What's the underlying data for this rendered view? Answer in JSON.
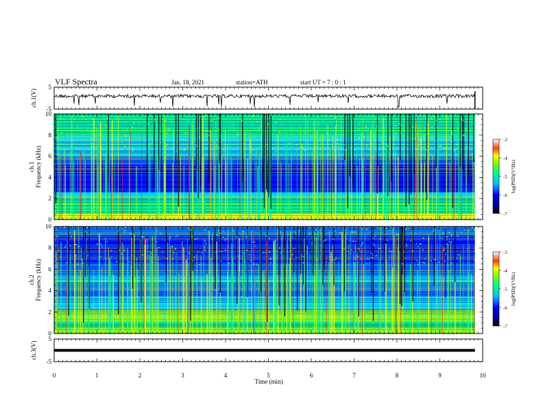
{
  "header": {
    "title": "VLF Spectra",
    "date": "Jan. 18, 2021",
    "station": "station=ATH",
    "start_ut": "start UT =  7 : 0 : 1"
  },
  "chart_data": [
    {
      "type": "line",
      "name": "ch1-waveform",
      "ylabel": "ch.1(V)",
      "ylim": [
        -5,
        5
      ],
      "yticks": [
        "5",
        "-5"
      ],
      "xlim": [
        0,
        10
      ]
    },
    {
      "type": "heatmap",
      "name": "ch1-spectrogram",
      "ylabel": "ch.1\nFrequency (kHz)",
      "ylim": [
        0,
        10
      ],
      "yticks": [
        "0",
        "2",
        "4",
        "6",
        "8",
        "10"
      ],
      "xlim": [
        0,
        10
      ],
      "colorbar": {
        "label": "log(PSD)(V²/Hz)",
        "range": [
          -7,
          -3
        ],
        "ticks": [
          "-3",
          "-4",
          "-5",
          "-6",
          "-7"
        ]
      }
    },
    {
      "type": "heatmap",
      "name": "ch2-spectrogram",
      "ylabel": "ch.2\nFrequency (kHz)",
      "ylim": [
        0,
        10
      ],
      "yticks": [
        "0",
        "2",
        "4",
        "6",
        "8",
        "10"
      ],
      "xlim": [
        0,
        10
      ],
      "colorbar": {
        "label": "log(PSD)(V²/Hz)",
        "range": [
          -7,
          -3
        ],
        "ticks": [
          "-3",
          "-4",
          "-5",
          "-6",
          "-7"
        ]
      }
    },
    {
      "type": "line",
      "name": "ch3-waveform",
      "ylabel": "ch.3(V)",
      "ylim": [
        -5,
        5
      ],
      "yticks": [
        "5",
        "-5"
      ],
      "xlim": [
        0,
        10
      ]
    }
  ],
  "xaxis": {
    "label": "Time (min)",
    "ticks": [
      "0",
      "1",
      "2",
      "3",
      "4",
      "5",
      "6",
      "7",
      "8",
      "9",
      "10"
    ]
  },
  "colors": {
    "colormap": [
      "#00007f",
      "#0000ff",
      "#0080ff",
      "#00ffff",
      "#00ff80",
      "#80ff00",
      "#ffff00",
      "#ff8000",
      "#ff0000",
      "#ffffff"
    ]
  }
}
